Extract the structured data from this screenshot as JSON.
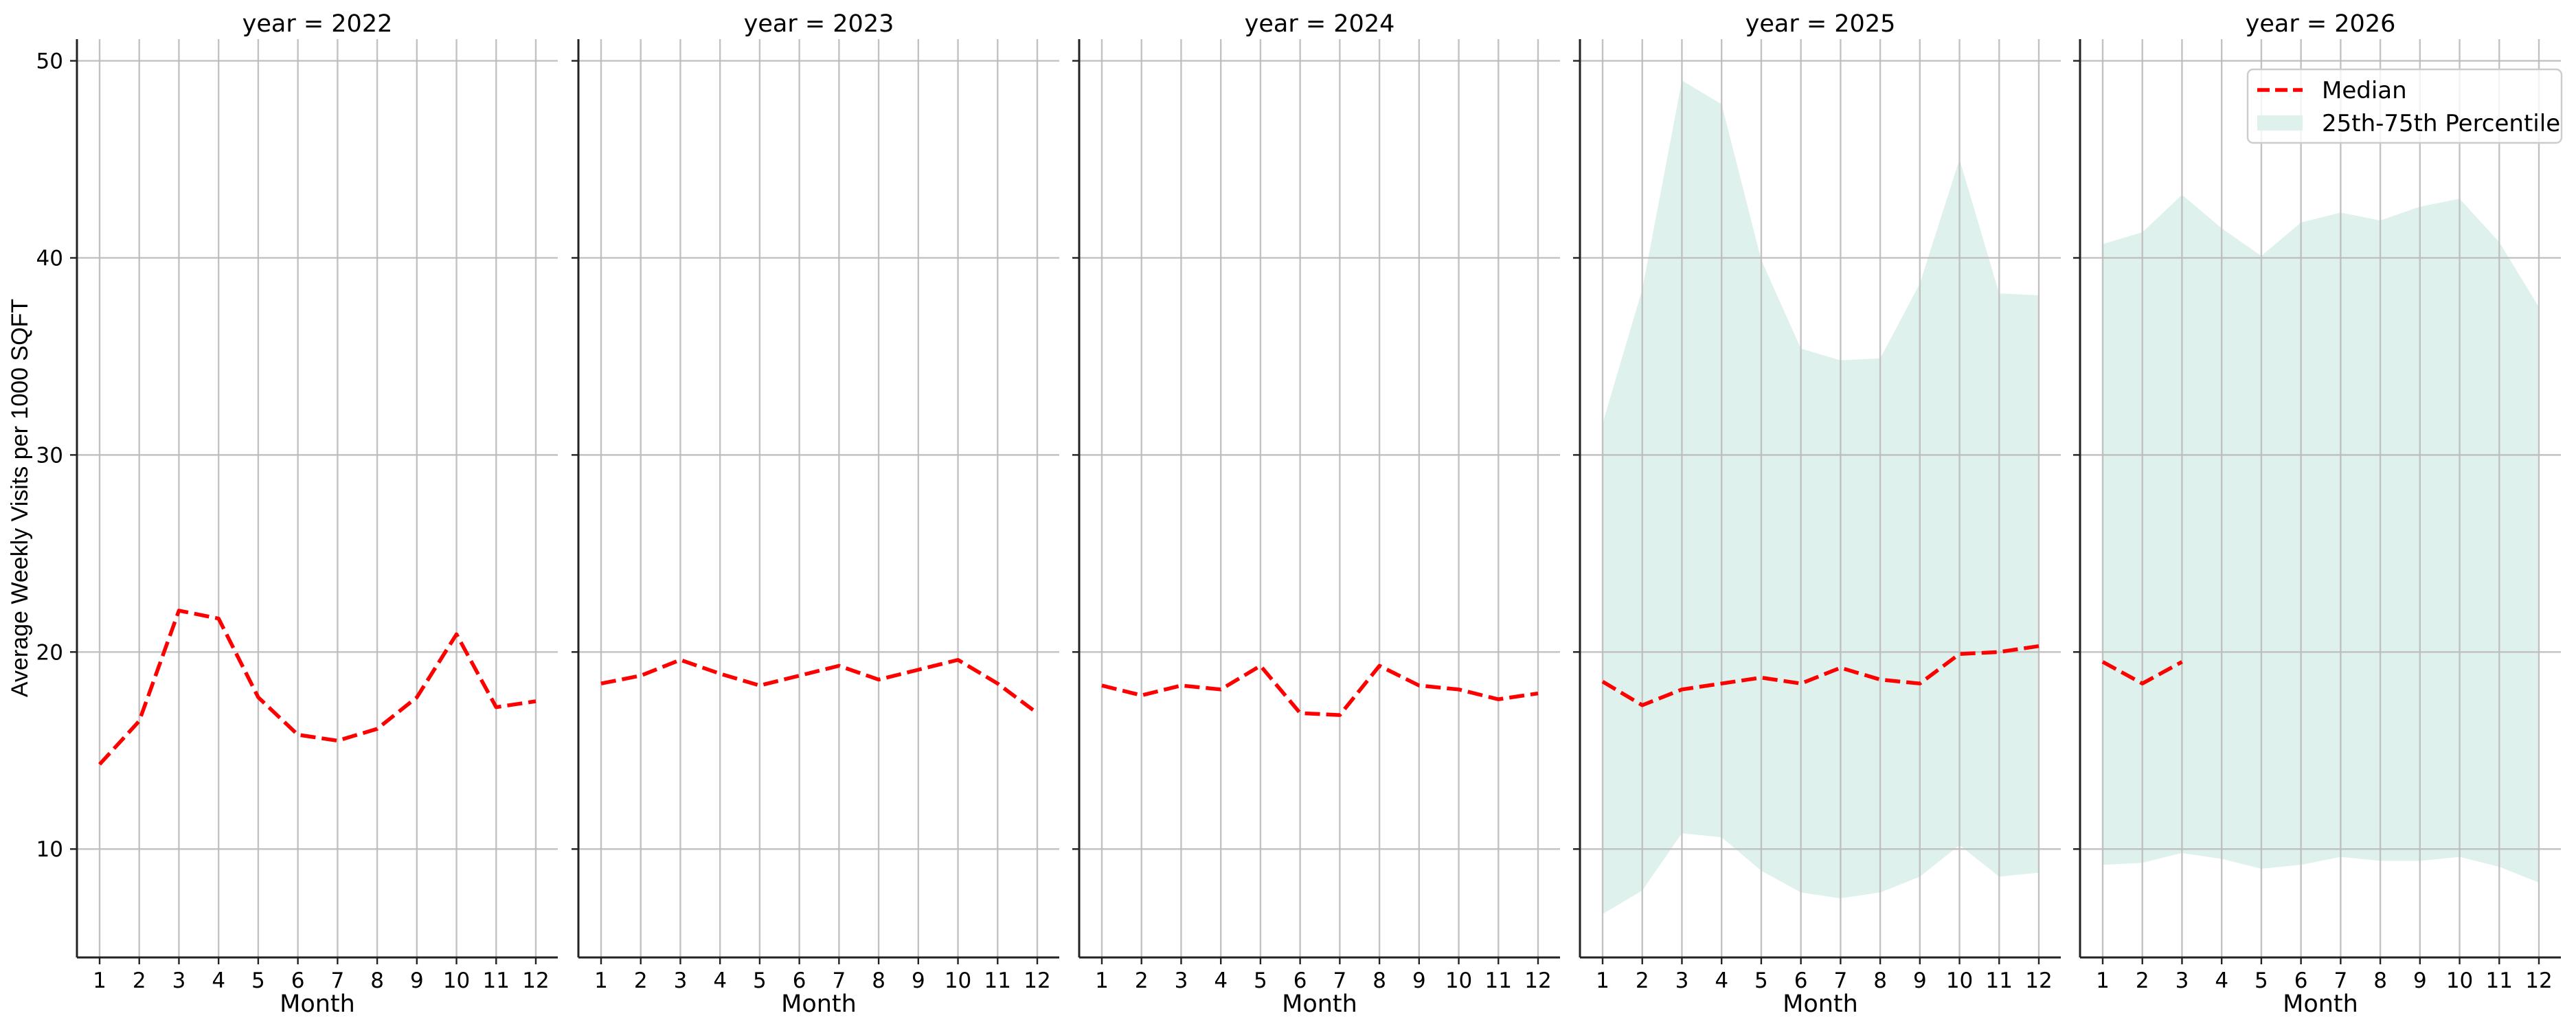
{
  "chart_data": {
    "type": "line",
    "layout": "faceted",
    "facet_by": "year",
    "ylabel": "Average Weekly Visits per 1000 SQFT",
    "xlabel": "Month",
    "ylim": [
      4.5,
      51.1
    ],
    "yticks": [
      10,
      20,
      30,
      40,
      50
    ],
    "xticks": [
      1,
      2,
      3,
      4,
      5,
      6,
      7,
      8,
      9,
      10,
      11,
      12
    ],
    "grid": true,
    "legend": {
      "position": "upper right of last panel",
      "entries": [
        {
          "label": "Median",
          "style": "dashed-line",
          "color": "#ff0000"
        },
        {
          "label": "25th-75th Percentile",
          "style": "filled-band",
          "color": "#dff1ec"
        }
      ]
    },
    "colors": {
      "median": "#ff0000",
      "band": "#dff1ec",
      "grid": "#bbbbbb",
      "axis": "#222222"
    },
    "panels": [
      {
        "title": "year = 2022",
        "x": [
          1,
          2,
          3,
          4,
          5,
          6,
          7,
          8,
          9,
          10,
          11,
          12
        ],
        "median": [
          14.3,
          16.5,
          22.1,
          21.7,
          17.7,
          15.8,
          15.5,
          16.1,
          17.7,
          20.9,
          17.2,
          17.5
        ],
        "p25": null,
        "p75": null
      },
      {
        "title": "year = 2023",
        "x": [
          1,
          2,
          3,
          4,
          5,
          6,
          7,
          8,
          9,
          10,
          11,
          12
        ],
        "median": [
          18.4,
          18.8,
          19.6,
          18.9,
          18.3,
          18.8,
          19.3,
          18.6,
          19.1,
          19.6,
          18.4,
          16.9
        ],
        "p25": null,
        "p75": null
      },
      {
        "title": "year = 2024",
        "x": [
          1,
          2,
          3,
          4,
          5,
          6,
          7,
          8,
          9,
          10,
          11,
          12
        ],
        "median": [
          18.3,
          17.8,
          18.3,
          18.1,
          19.3,
          16.9,
          16.8,
          19.3,
          18.3,
          18.1,
          17.6,
          17.9
        ],
        "p25": null,
        "p75": null
      },
      {
        "title": "year = 2025",
        "x": [
          1,
          2,
          3,
          4,
          5,
          6,
          7,
          8,
          9,
          10,
          11,
          12
        ],
        "median": [
          18.5,
          17.3,
          18.1,
          18.4,
          18.7,
          18.4,
          19.2,
          18.6,
          18.4,
          19.9,
          20.0,
          20.3
        ],
        "p25": [
          6.7,
          7.9,
          10.8,
          10.6,
          8.9,
          7.8,
          7.5,
          7.8,
          8.6,
          10.2,
          8.6,
          8.8
        ],
        "p75": [
          31.6,
          38.4,
          49.0,
          47.8,
          39.9,
          35.4,
          34.8,
          34.9,
          38.7,
          45.0,
          38.2,
          38.1
        ]
      },
      {
        "title": "year = 2026",
        "x": [
          1,
          2,
          3,
          4,
          5,
          6,
          7,
          8,
          9,
          10,
          11,
          12
        ],
        "median_x": [
          1,
          2,
          3
        ],
        "median": [
          19.5,
          18.4,
          19.5
        ],
        "p25": [
          9.2,
          9.3,
          9.8,
          9.5,
          9.0,
          9.2,
          9.6,
          9.4,
          9.4,
          9.6,
          9.1,
          8.3
        ],
        "p75": [
          40.7,
          41.3,
          43.2,
          41.5,
          40.1,
          41.8,
          42.3,
          41.9,
          42.6,
          43.0,
          40.8,
          37.5
        ]
      }
    ]
  }
}
